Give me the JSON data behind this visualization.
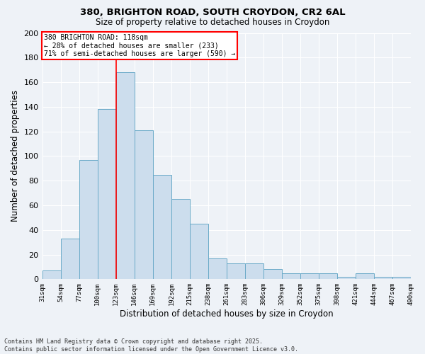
{
  "title_line1": "380, BRIGHTON ROAD, SOUTH CROYDON, CR2 6AL",
  "title_line2": "Size of property relative to detached houses in Croydon",
  "xlabel": "Distribution of detached houses by size in Croydon",
  "ylabel": "Number of detached properties",
  "bins": [
    "31sqm",
    "54sqm",
    "77sqm",
    "100sqm",
    "123sqm",
    "146sqm",
    "169sqm",
    "192sqm",
    "215sqm",
    "238sqm",
    "261sqm",
    "283sqm",
    "306sqm",
    "329sqm",
    "352sqm",
    "375sqm",
    "398sqm",
    "421sqm",
    "444sqm",
    "467sqm",
    "490sqm"
  ],
  "values": [
    7,
    33,
    97,
    138,
    168,
    121,
    85,
    65,
    45,
    17,
    13,
    13,
    8,
    5,
    5,
    5,
    2,
    5,
    2,
    2
  ],
  "bar_color": "#ccdded",
  "bar_edge_color": "#6aaac8",
  "background_color": "#eef2f7",
  "grid_color": "#ffffff",
  "vline_color": "red",
  "vline_position": 4,
  "annotation_text": "380 BRIGHTON ROAD: 118sqm\n← 28% of detached houses are smaller (233)\n71% of semi-detached houses are larger (590) →",
  "annotation_box_color": "white",
  "annotation_box_edge": "red",
  "ylim": [
    0,
    200
  ],
  "yticks": [
    0,
    20,
    40,
    60,
    80,
    100,
    120,
    140,
    160,
    180,
    200
  ],
  "footnote_line1": "Contains HM Land Registry data © Crown copyright and database right 2025.",
  "footnote_line2": "Contains public sector information licensed under the Open Government Licence v3.0."
}
